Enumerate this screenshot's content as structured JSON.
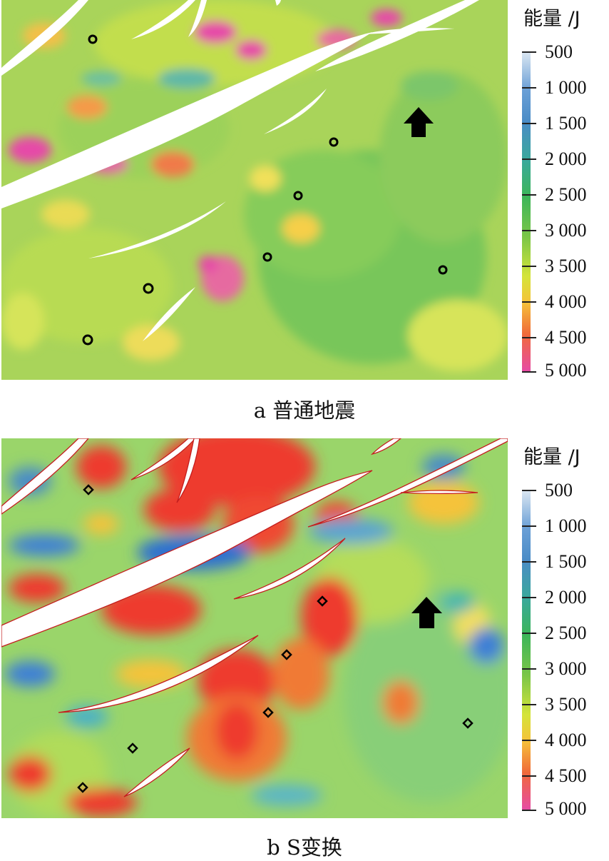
{
  "panels": [
    {
      "caption": "a 普通地震",
      "legend_title": "能量 /J",
      "legend_values": [
        "500",
        "1 000",
        "1 500",
        "2 000",
        "2 500",
        "3 000",
        "3 500",
        "4 000",
        "4 500",
        "5 000"
      ]
    },
    {
      "caption": "b S变换",
      "legend_title": "能量 /J",
      "legend_values": [
        "500",
        "1 000",
        "1 500",
        "2 000",
        "2 500",
        "3 000",
        "3 500",
        "4 000",
        "4 500",
        "5 000"
      ]
    }
  ],
  "colors": {
    "scale": [
      "#c8dcee",
      "#6a9fd6",
      "#4a8cc6",
      "#3aa99b",
      "#3cb55a",
      "#6cc045",
      "#d4e43a",
      "#f5c33a",
      "#f06a3a",
      "#e64aa8"
    ],
    "arrow": "#000000"
  },
  "icons": [
    "north-arrow-icon",
    "well-marker-icon"
  ]
}
